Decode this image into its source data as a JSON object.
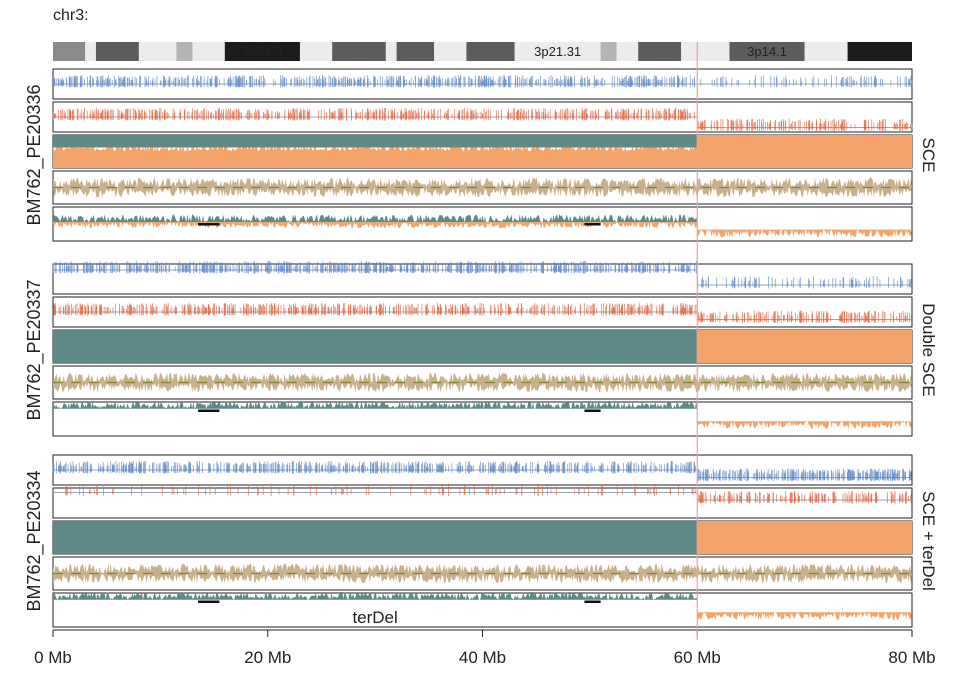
{
  "chromosome_label": "chr3:",
  "ideogram": {
    "bands": [
      {
        "start": 0.0,
        "end": 3.0,
        "stain": "gpos50"
      },
      {
        "start": 3.0,
        "end": 4.0,
        "stain": "gneg"
      },
      {
        "start": 4.0,
        "end": 8.0,
        "stain": "gpos75"
      },
      {
        "start": 8.0,
        "end": 11.5,
        "stain": "gneg"
      },
      {
        "start": 11.5,
        "end": 13.0,
        "stain": "gpos25"
      },
      {
        "start": 13.0,
        "end": 16.0,
        "stain": "gneg"
      },
      {
        "start": 16.0,
        "end": 23.0,
        "stain": "gpos100",
        "label": "3p24.3"
      },
      {
        "start": 23.0,
        "end": 26.0,
        "stain": "gneg"
      },
      {
        "start": 26.0,
        "end": 31.0,
        "stain": "gpos75"
      },
      {
        "start": 31.0,
        "end": 32.0,
        "stain": "gneg"
      },
      {
        "start": 32.0,
        "end": 35.5,
        "stain": "gpos75"
      },
      {
        "start": 35.5,
        "end": 38.5,
        "stain": "gneg"
      },
      {
        "start": 38.5,
        "end": 43.0,
        "stain": "gpos75"
      },
      {
        "start": 43.0,
        "end": 51.0,
        "stain": "gneg",
        "label": "3p21.31"
      },
      {
        "start": 51.0,
        "end": 52.5,
        "stain": "gpos25"
      },
      {
        "start": 52.5,
        "end": 54.5,
        "stain": "gneg"
      },
      {
        "start": 54.5,
        "end": 58.5,
        "stain": "gpos75"
      },
      {
        "start": 58.5,
        "end": 63.0,
        "stain": "gneg"
      },
      {
        "start": 63.0,
        "end": 70.0,
        "stain": "gpos75",
        "label": "3p14.1"
      },
      {
        "start": 70.0,
        "end": 74.0,
        "stain": "gneg"
      },
      {
        "start": 74.0,
        "end": 80.0,
        "stain": "gpos100"
      }
    ]
  },
  "chart_data": {
    "type": "multi-track genome plot",
    "x_axis": {
      "range": [
        0,
        80
      ],
      "ticks": [
        0,
        20,
        40,
        60,
        80
      ],
      "tick_labels": [
        "0 Mb",
        "20 Mb",
        "40 Mb",
        "60 Mb",
        "80 Mb"
      ]
    },
    "breakpoint_mb": 60,
    "samples": [
      {
        "name": "BM762_PE20336",
        "event": "SCE",
        "tracks": {
          "watson_reads": {
            "before_level": 0.5,
            "after_level": 0.5
          },
          "crick_reads": {
            "before_level": 0.5,
            "after_level": 0.15
          },
          "strand_state": {
            "before_watson_fraction": 0.5,
            "after_watson_fraction": 0.0
          },
          "copy_ratio": {
            "mean_before": 0.5,
            "mean_after": 0.5
          },
          "wc_ratio": {
            "before": 0.55,
            "after": 0.1
          }
        }
      },
      {
        "name": "BM762_PE20337",
        "event": "Double SCE",
        "tracks": {
          "watson_reads": {
            "before_level": 0.8,
            "after_level": 0.3
          },
          "crick_reads": {
            "before_level": 0.5,
            "after_level": 0.25
          },
          "strand_state": {
            "before_watson_fraction": 1.0,
            "after_watson_fraction": 0.0
          },
          "copy_ratio": {
            "mean_before": 0.5,
            "mean_after": 0.5
          },
          "wc_ratio": {
            "before": 0.8,
            "after": 0.2
          }
        }
      },
      {
        "name": "BM762_PE20334",
        "event": "SCE + terDel",
        "annotation": "terDel",
        "tracks": {
          "watson_reads": {
            "before_level": 0.5,
            "after_level": 0.25
          },
          "crick_reads": {
            "before_level": 0.85,
            "after_level": 0.6
          },
          "strand_state": {
            "before_watson_fraction": 1.0,
            "after_watson_fraction": 0.0
          },
          "copy_ratio": {
            "mean_before": 0.5,
            "mean_after": 0.5
          },
          "wc_ratio": {
            "before": 0.8,
            "after": 0.2
          }
        }
      }
    ],
    "colors": {
      "watson": "#5b84c4",
      "crick": "#e0603c",
      "watson_fill": "#5d8a86",
      "crick_fill": "#f4a36a",
      "copy": "#c9b08c",
      "copy_dash": "#7a8a2a",
      "breakpoint": "#f0a0a0"
    }
  }
}
